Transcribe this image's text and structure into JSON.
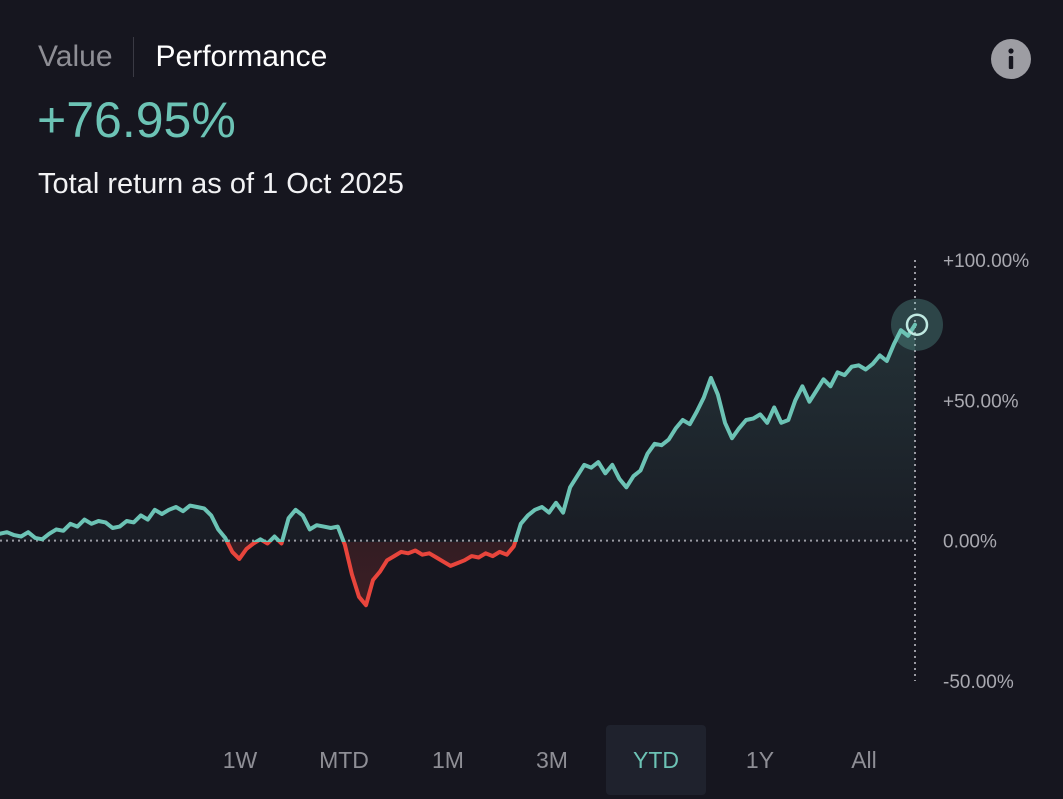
{
  "tabs": {
    "value_label": "Value",
    "performance_label": "Performance",
    "active": "Performance"
  },
  "headline": {
    "return_value": "+76.95%",
    "caption": "Total return as of 1 Oct 2025"
  },
  "colors": {
    "positive": "#6cc3b5",
    "negative": "#e8453c",
    "background": "#16161f",
    "muted_text": "#8e8e95"
  },
  "icons": {
    "info": "info-icon"
  },
  "range": {
    "options": [
      "1W",
      "MTD",
      "1M",
      "3M",
      "YTD",
      "1Y",
      "All"
    ],
    "selected": "YTD"
  },
  "chart_data": {
    "type": "line",
    "y_ticks": [
      "+100.00%",
      "+50.00%",
      "0.00%",
      "-50.00%"
    ],
    "y_tick_values": [
      100,
      50,
      0,
      -50
    ],
    "ylim": [
      -50,
      100
    ],
    "baseline": 0,
    "grid": false,
    "series": [
      {
        "values": [
          2.5,
          3,
          2,
          1.5,
          3,
          1,
          0.5,
          2.5,
          4,
          3.5,
          6,
          5,
          7.5,
          6,
          7,
          6.5,
          4.5,
          5,
          7,
          6.5,
          9,
          7.5,
          11,
          9.5,
          11,
          12,
          10.5,
          12.5,
          12,
          11.5,
          9,
          4,
          1,
          -4,
          -6.5,
          -3,
          -1,
          0.5,
          -1,
          1.5,
          -1,
          8,
          11,
          9,
          4,
          5.5,
          5,
          4.5,
          5,
          -1.5,
          -12,
          -20,
          -23,
          -14,
          -11,
          -7,
          -5.5,
          -4,
          -4.5,
          -3.5,
          -5,
          -4.5,
          -6,
          -7.5,
          -9,
          -8,
          -7,
          -5.5,
          -6,
          -4.5,
          -5.5,
          -4,
          -5,
          -2,
          6,
          9,
          11,
          12,
          10,
          13.5,
          10,
          19,
          23,
          27,
          26,
          28,
          24,
          27,
          22,
          19,
          23,
          25,
          31,
          34.5,
          34,
          36,
          40,
          43,
          41.5,
          46,
          51,
          58,
          52,
          42,
          36.5,
          40,
          43,
          43.5,
          45,
          42,
          47.5,
          42,
          43,
          50,
          55,
          49.5,
          53.5,
          57.5,
          55,
          60,
          59,
          62,
          62.5,
          61,
          63,
          66,
          64,
          70,
          75,
          73,
          76.95
        ]
      }
    ]
  }
}
